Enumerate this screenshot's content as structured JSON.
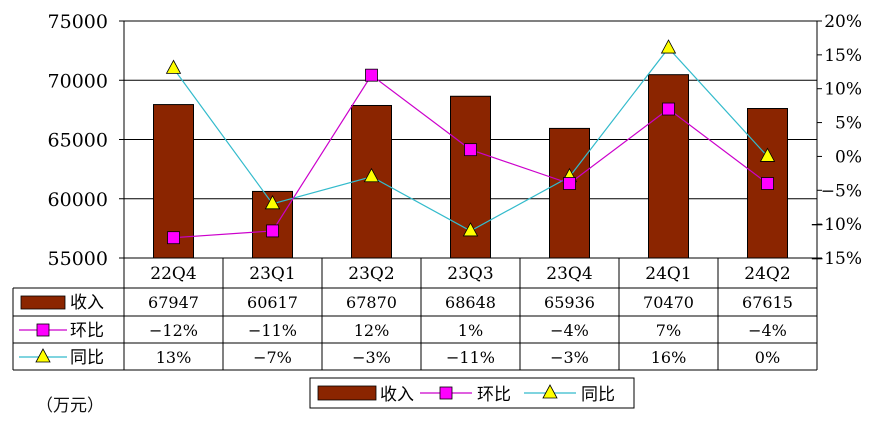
{
  "chart_data": {
    "type": "bar",
    "categories": [
      "22Q4",
      "23Q1",
      "23Q2",
      "23Q3",
      "23Q4",
      "24Q1",
      "24Q2"
    ],
    "series": [
      {
        "name": "收入",
        "type": "bar",
        "axis": "left",
        "values": [
          67947,
          60617,
          67870,
          68648,
          65936,
          70470,
          67615
        ],
        "display": [
          "67947",
          "60617",
          "67870",
          "68648",
          "65936",
          "70470",
          "67615"
        ],
        "color": "#8B2500"
      },
      {
        "name": "环比",
        "type": "line",
        "axis": "right",
        "marker": "square",
        "values": [
          -12,
          -11,
          12,
          1,
          -4,
          7,
          -4
        ],
        "display": [
          "-12%",
          "-11%",
          "12%",
          "1%",
          "-4%",
          "7%",
          "-4%"
        ],
        "color": "#CC00CC",
        "marker_color": "#FF00FF"
      },
      {
        "name": "同比",
        "type": "line",
        "axis": "right",
        "marker": "triangle",
        "values": [
          13,
          -7,
          -3,
          -11,
          -3,
          16,
          0
        ],
        "display": [
          "13%",
          "-7%",
          "-3%",
          "-11%",
          "-3%",
          "16%",
          "0%"
        ],
        "color": "#33BBCC",
        "marker_color": "#FFFF00"
      }
    ],
    "y_left": {
      "lim": [
        55000,
        75000
      ],
      "ticks": [
        "55000",
        "60000",
        "65000",
        "70000",
        "75000"
      ]
    },
    "y_right": {
      "lim": [
        -15,
        20
      ],
      "ticks": [
        "20%",
        "15%",
        "10%",
        "5%",
        "0%",
        "-5%",
        "-10%",
        "-15%"
      ],
      "tick_values": [
        20,
        15,
        10,
        5,
        0,
        -5,
        -10,
        -15
      ]
    },
    "gridlines": true,
    "data_table": true,
    "legend": "bottom-center",
    "unit_label": "（万元）"
  }
}
